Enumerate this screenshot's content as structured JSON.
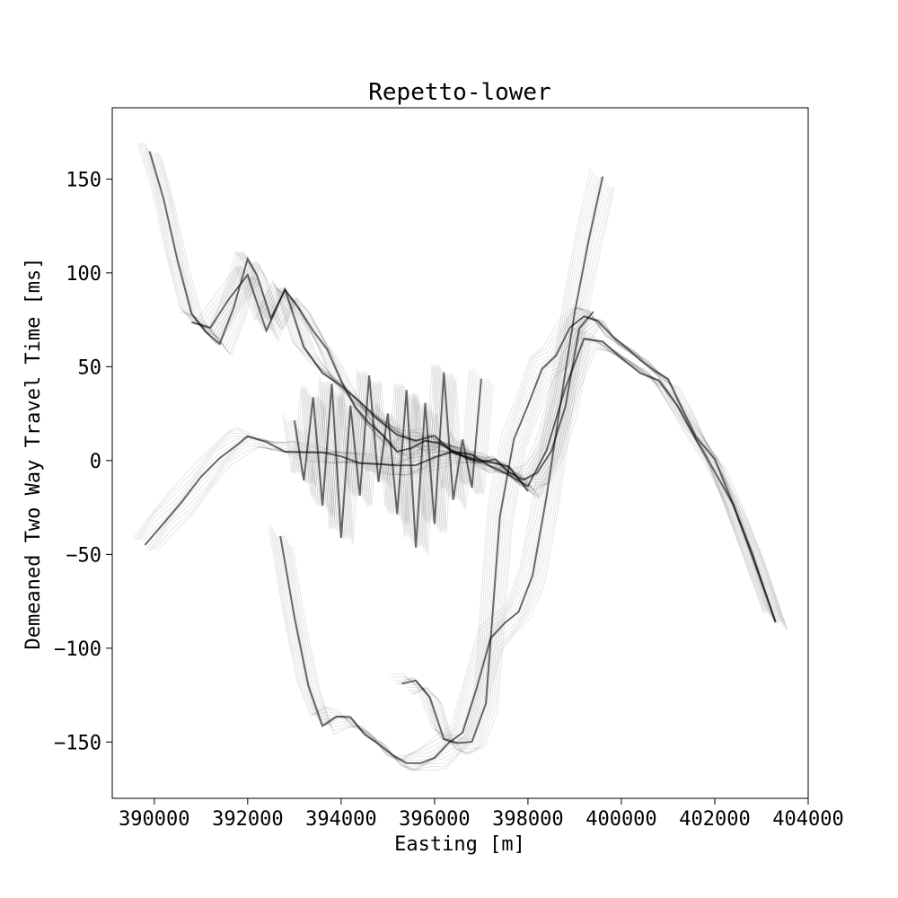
{
  "chart_data": {
    "type": "line",
    "title": "Repetto-lower",
    "xlabel": "Easting [m]",
    "ylabel": "Demeaned Two Way Travel Time [ms]",
    "xlim": [
      389100,
      404000
    ],
    "ylim": [
      -180,
      188
    ],
    "xticks": [
      390000,
      392000,
      394000,
      396000,
      398000,
      400000,
      402000,
      404000
    ],
    "xtick_labels": [
      "390000",
      "392000",
      "394000",
      "396000",
      "398000",
      "400000",
      "402000",
      "404000"
    ],
    "yticks": [
      150,
      100,
      50,
      0,
      -50,
      -100,
      -150
    ],
    "ytick_labels": [
      "150",
      "100",
      "50",
      "0",
      "−50",
      "−100",
      "−150"
    ],
    "grid": false,
    "line_color": "#000000",
    "series": [
      {
        "x": [
          389800,
          390200,
          390600,
          391000,
          391400,
          391800,
          392000,
          392400,
          392800,
          393200,
          393600,
          394000,
          394400,
          394800,
          395200,
          395600,
          396000,
          396400,
          396800,
          397200,
          397600,
          398000,
          398400,
          398800,
          399200,
          399600,
          400000,
          400400,
          400800,
          401200,
          401600,
          402000,
          402400,
          402800,
          403300
        ],
        "y": [
          -45,
          -32,
          -22,
          -10,
          2,
          10,
          12,
          9,
          6,
          5,
          3,
          2,
          0,
          -2,
          -4,
          -2,
          3,
          4,
          2,
          -2,
          -7,
          -15,
          5,
          40,
          65,
          62,
          55,
          48,
          42,
          28,
          12,
          -5,
          -25,
          -50,
          -85
        ]
      },
      {
        "x": [
          389900,
          390200,
          390500,
          390800,
          391100,
          391400,
          391700,
          392000,
          392200,
          392500,
          392800,
          393100,
          393400,
          393700,
          394000,
          394300,
          394600,
          394900,
          395200,
          395500,
          395800,
          396100,
          396400,
          396700,
          397000,
          397300,
          397600,
          397900,
          398200,
          398500,
          398800,
          399100,
          399400
        ],
        "y": [
          166,
          140,
          105,
          78,
          70,
          62,
          80,
          108,
          100,
          75,
          90,
          82,
          70,
          58,
          42,
          30,
          20,
          12,
          5,
          8,
          10,
          8,
          6,
          2,
          -2,
          0,
          -5,
          -10,
          -8,
          5,
          30,
          70,
          78
        ]
      },
      {
        "x": [
          390800,
          391200,
          391600,
          392000,
          392400,
          392800,
          393200,
          393600,
          394000,
          394400,
          394800,
          395200,
          395600,
          396000,
          396400,
          396800,
          397200,
          397600,
          398000
        ],
        "y": [
          75,
          70,
          85,
          100,
          70,
          90,
          60,
          48,
          40,
          30,
          22,
          15,
          10,
          12,
          5,
          2,
          -2,
          -4,
          -15
        ]
      },
      {
        "x": [
          392700,
          393000,
          393300,
          393600,
          393900,
          394200,
          394500,
          394800,
          395100,
          395400,
          395700,
          396000,
          396300,
          396600,
          396900,
          397200,
          397500,
          397800,
          398100,
          398400,
          398700,
          399000,
          399300,
          399600
        ],
        "y": [
          -40,
          -85,
          -120,
          -140,
          -137,
          -138,
          -145,
          -150,
          -158,
          -162,
          -160,
          -158,
          -152,
          -145,
          -120,
          -95,
          -88,
          -80,
          -60,
          -20,
          30,
          80,
          118,
          150
        ]
      },
      {
        "x": [
          395300,
          395600,
          395900,
          396200,
          396500,
          396800,
          397100,
          397400,
          397700,
          398000,
          398300,
          398600,
          398900,
          399200,
          399500,
          399800,
          400100,
          400400,
          400700,
          401000,
          401300,
          401600,
          402000,
          402400,
          402800,
          403300
        ],
        "y": [
          -120,
          -118,
          -125,
          -148,
          -152,
          -150,
          -128,
          -30,
          10,
          30,
          50,
          55,
          70,
          78,
          75,
          65,
          60,
          55,
          48,
          42,
          28,
          14,
          0,
          -25,
          -50,
          -85
        ]
      },
      {
        "x": [
          393000,
          393200,
          393400,
          393600,
          393800,
          394000,
          394200,
          394400,
          394600,
          394800,
          395000,
          395200,
          395400,
          395600,
          395800,
          396000,
          396200,
          396400,
          396600,
          396800,
          397000
        ],
        "y": [
          20,
          -10,
          35,
          -25,
          40,
          -40,
          30,
          -20,
          45,
          -10,
          25,
          -30,
          38,
          -45,
          30,
          -35,
          48,
          -20,
          10,
          -15,
          45
        ]
      }
    ]
  }
}
